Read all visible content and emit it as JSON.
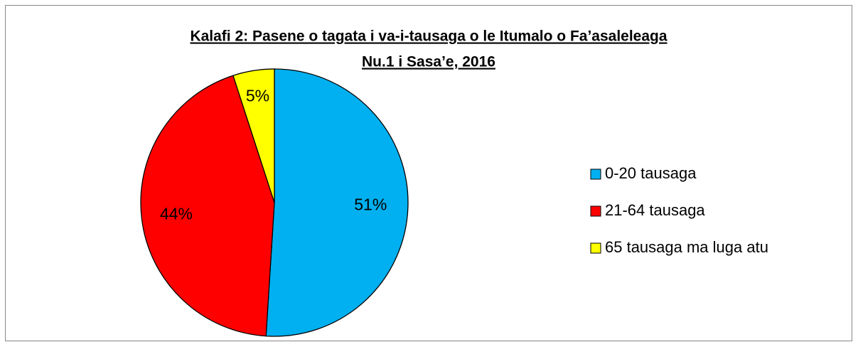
{
  "chart_data": {
    "type": "pie",
    "title": [
      "Kalafi 2: Pasene o tagata i va-i-tausaga o le Itumalo o Fa’asaleleaga",
      "Nu.1 i Sasa’e, 2016"
    ],
    "categories": [
      "0-20 tausaga",
      "21-64 tausaga",
      "65 tausaga ma luga atu"
    ],
    "values": [
      51,
      44,
      5
    ],
    "value_labels": [
      "51%",
      "44%",
      "5%"
    ],
    "colors": [
      "#00b0f0",
      "#ff0000",
      "#ffff00"
    ],
    "legend": "right"
  }
}
